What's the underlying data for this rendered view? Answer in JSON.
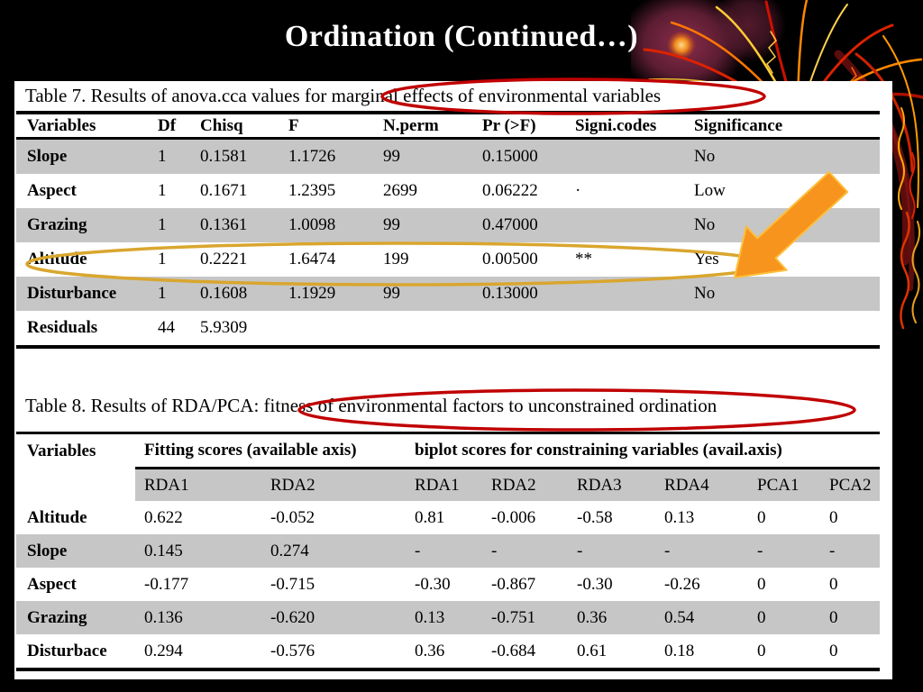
{
  "slide": {
    "title": "Ordination (Continued…)"
  },
  "table7": {
    "caption": "Table 7. Results of anova.cca values for marginal effects of environmental variables",
    "columns": [
      "Variables",
      "Df",
      "Chisq",
      "F",
      "N.perm",
      "Pr (>F)",
      "Signi.codes",
      "Significance"
    ],
    "rows": [
      [
        "Slope",
        "1",
        "0.1581",
        "1.1726",
        "99",
        "0.15000",
        "",
        "No"
      ],
      [
        "Aspect",
        "1",
        "0.1671",
        "1.2395",
        "2699",
        "0.06222",
        "·",
        "Low"
      ],
      [
        "Grazing",
        "1",
        "0.1361",
        "1.0098",
        "99",
        "0.47000",
        "",
        "No"
      ],
      [
        "Altitude",
        "1",
        "0.2221",
        "1.6474",
        "199",
        "0.00500",
        "**",
        "Yes"
      ],
      [
        "Disturbance",
        "1",
        "0.1608",
        "1.1929",
        "99",
        "0.13000",
        "",
        "No"
      ],
      [
        "Residuals",
        "44",
        "5.9309",
        "",
        "",
        "",
        "",
        ""
      ]
    ],
    "shaded_rows": [
      0,
      2,
      4
    ]
  },
  "table8": {
    "caption": "Table 8. Results of RDA/PCA: fitness of environmental factors to unconstrained ordination",
    "group_headers": {
      "variables": "Variables",
      "fitting": "Fitting scores (available axis)",
      "biplot": "biplot scores for constraining variables (avail.axis)"
    },
    "sub_columns": [
      "RDA1",
      "RDA2",
      "RDA1",
      "RDA2",
      "RDA3",
      "RDA4",
      "PCA1",
      "PCA2"
    ],
    "rows": [
      [
        "Altitude",
        "0.622",
        "-0.052",
        "0.81",
        "-0.006",
        "-0.58",
        "0.13",
        "0",
        "0"
      ],
      [
        "Slope",
        "0.145",
        "0.274",
        "-",
        "-",
        "-",
        "-",
        "-",
        "-"
      ],
      [
        "Aspect",
        "-0.177",
        "-0.715",
        "-0.30",
        "-0.867",
        "-0.30",
        "-0.26",
        "0",
        "0"
      ],
      [
        "Grazing",
        "0.136",
        "-0.620",
        "0.13",
        "-0.751",
        "0.36",
        "0.54",
        "0",
        "0"
      ],
      [
        "Disturbace",
        "0.294",
        "-0.576",
        "0.36",
        "-0.684",
        "0.61",
        "0.18",
        "0",
        "0"
      ]
    ],
    "shaded_rows": [
      1,
      3
    ]
  },
  "colors": {
    "row_gray": "#c6c6c6",
    "ellipse_red": "#c00000",
    "ellipse_yellow": "#d9a62e",
    "arrow_fill": "#f7941d",
    "arrow_outline": "#fdbe3b",
    "title_white": "#ffffff"
  }
}
